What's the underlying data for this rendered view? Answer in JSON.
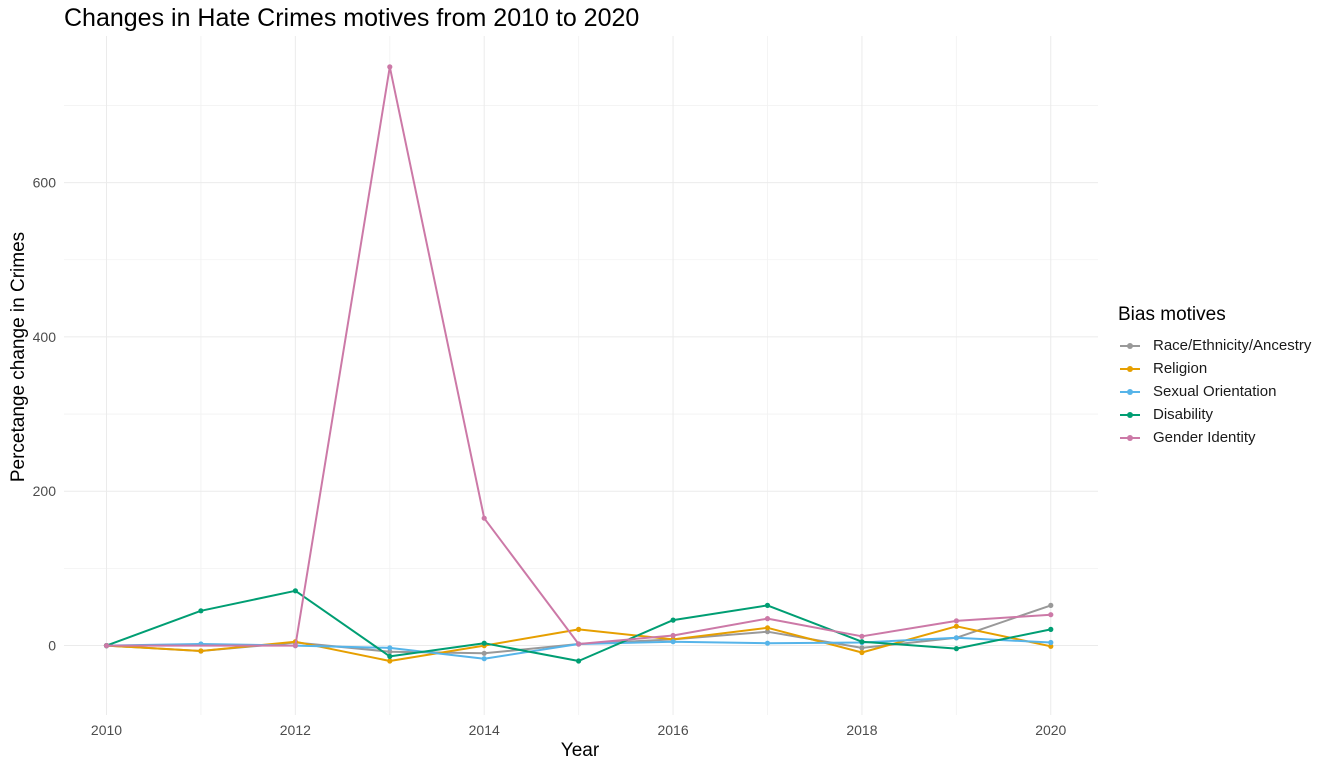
{
  "chart_data": {
    "type": "line",
    "title": "Changes in Hate Crimes motives from 2010 to 2020",
    "xlabel": "Year",
    "ylabel": "Percetange change in Crimes",
    "x": [
      2010,
      2011,
      2012,
      2013,
      2014,
      2015,
      2016,
      2017,
      2018,
      2019,
      2020
    ],
    "x_ticks": [
      2010,
      2012,
      2014,
      2016,
      2018,
      2020
    ],
    "y_ticks": [
      0,
      200,
      400,
      600
    ],
    "xlim": [
      2009.55,
      2020.5
    ],
    "ylim": [
      -90,
      790
    ],
    "grid": true,
    "legend_position": "right",
    "legend_title": "Bias motives",
    "series": [
      {
        "name": "Race/Ethnicity/Ancestry",
        "color": "#999999",
        "values": [
          0,
          -7,
          4,
          -8,
          -10,
          2,
          8,
          18,
          -3,
          10,
          52
        ]
      },
      {
        "name": "Religion",
        "color": "#E69F00",
        "values": [
          0,
          -7,
          5,
          -20,
          0,
          21,
          8,
          23,
          -9,
          25,
          -1
        ]
      },
      {
        "name": "Sexual Orientation",
        "color": "#56B4E9",
        "values": [
          0,
          2,
          0,
          -3,
          -17,
          2,
          5,
          3,
          4,
          10,
          4
        ]
      },
      {
        "name": "Disability",
        "color": "#009E73",
        "values": [
          0,
          45,
          71,
          -14,
          3,
          -20,
          33,
          52,
          5,
          -4,
          21
        ]
      },
      {
        "name": "Gender Identity",
        "color": "#CC79A7",
        "values": [
          0,
          null,
          0,
          750,
          165,
          2,
          13,
          35,
          12,
          32,
          40
        ]
      }
    ]
  }
}
